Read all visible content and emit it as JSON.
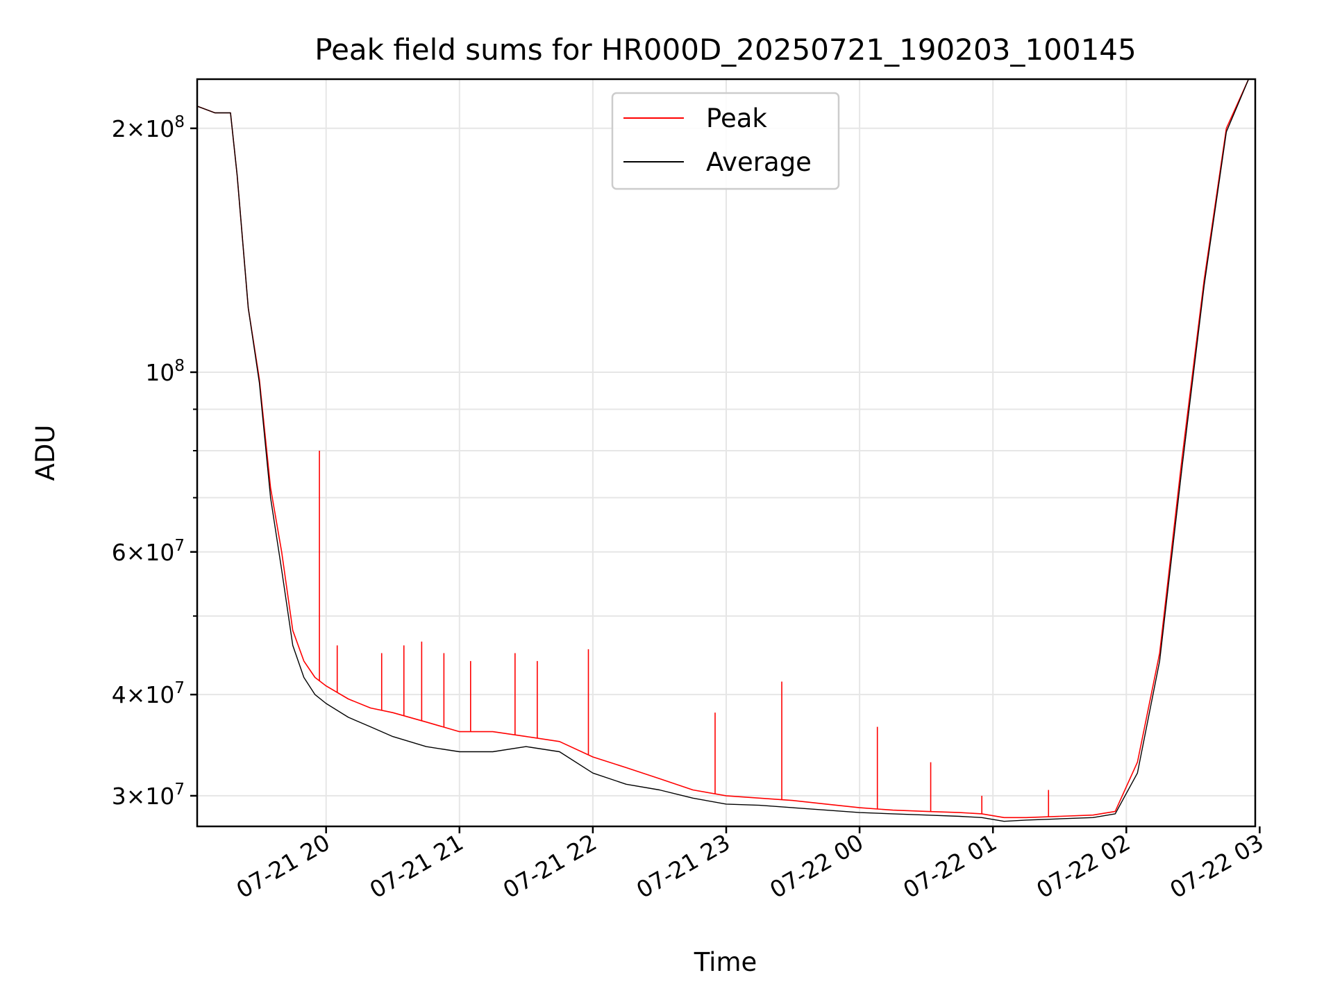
{
  "chart_data": {
    "type": "line",
    "title": "Peak field sums for HR000D_20250721_190203_100145",
    "xlabel": "Time",
    "ylabel": "ADU",
    "yscale": "log",
    "ylim": [
      27500000,
      230000000
    ],
    "xlim": [
      "2025-07-21 19:02",
      "2025-07-22 02:58"
    ],
    "grid": true,
    "legend_position": "upper-center",
    "x_ticks": [
      {
        "t": "2025-07-21 20:00",
        "label": "07-21 20"
      },
      {
        "t": "2025-07-21 21:00",
        "label": "07-21 21"
      },
      {
        "t": "2025-07-21 22:00",
        "label": "07-21 22"
      },
      {
        "t": "2025-07-21 23:00",
        "label": "07-21 23"
      },
      {
        "t": "2025-07-22 00:00",
        "label": "07-22 00"
      },
      {
        "t": "2025-07-22 01:00",
        "label": "07-22 01"
      },
      {
        "t": "2025-07-22 02:00",
        "label": "07-22 02"
      },
      {
        "t": "2025-07-22 03:00",
        "label": "07-22 03"
      }
    ],
    "y_ticks_major": [
      {
        "value": 30000000,
        "mantissa": "3",
        "exponent": "7"
      },
      {
        "value": 40000000,
        "mantissa": "4",
        "exponent": "7"
      },
      {
        "value": 60000000,
        "mantissa": "6",
        "exponent": "7"
      },
      {
        "value": 100000000,
        "mantissa": "",
        "exponent": "8"
      },
      {
        "value": 200000000,
        "mantissa": "2",
        "exponent": "8"
      }
    ],
    "y_ticks_minor": [
      50000000,
      70000000,
      80000000,
      90000000
    ],
    "series": [
      {
        "name": "Peak",
        "color": "#ff0000",
        "x": [
          "2025-07-21 19:02",
          "2025-07-21 19:10",
          "2025-07-21 19:17",
          "2025-07-21 19:20",
          "2025-07-21 19:25",
          "2025-07-21 19:30",
          "2025-07-21 19:35",
          "2025-07-21 19:40",
          "2025-07-21 19:45",
          "2025-07-21 19:50",
          "2025-07-21 19:55",
          "2025-07-21 20:00",
          "2025-07-21 20:10",
          "2025-07-21 20:20",
          "2025-07-21 20:30",
          "2025-07-21 20:45",
          "2025-07-21 21:00",
          "2025-07-21 21:15",
          "2025-07-21 21:30",
          "2025-07-21 21:45",
          "2025-07-21 22:00",
          "2025-07-21 22:15",
          "2025-07-21 22:30",
          "2025-07-21 22:45",
          "2025-07-21 23:00",
          "2025-07-21 23:15",
          "2025-07-21 23:30",
          "2025-07-21 23:45",
          "2025-07-22 00:00",
          "2025-07-22 00:15",
          "2025-07-22 00:30",
          "2025-07-22 00:45",
          "2025-07-22 00:55",
          "2025-07-22 01:05",
          "2025-07-22 01:15",
          "2025-07-22 01:30",
          "2025-07-22 01:45",
          "2025-07-22 01:55",
          "2025-07-22 02:05",
          "2025-07-22 02:15",
          "2025-07-22 02:25",
          "2025-07-22 02:35",
          "2025-07-22 02:45",
          "2025-07-22 02:55"
        ],
        "y": [
          213000000,
          209000000,
          209000000,
          175000000,
          120000000,
          98000000,
          72000000,
          60000000,
          48000000,
          44000000,
          42000000,
          41000000,
          39500000,
          38500000,
          38000000,
          37000000,
          36000000,
          36000000,
          35500000,
          35000000,
          33500000,
          32500000,
          31500000,
          30500000,
          30000000,
          29800000,
          29600000,
          29300000,
          29000000,
          28800000,
          28700000,
          28600000,
          28500000,
          28200000,
          28200000,
          28300000,
          28400000,
          28700000,
          33000000,
          45000000,
          78000000,
          130000000,
          200000000,
          230000000
        ],
        "spikes": [
          {
            "x": "2025-07-21 19:57",
            "y": 80000000
          },
          {
            "x": "2025-07-21 20:05",
            "y": 46000000
          },
          {
            "x": "2025-07-21 20:25",
            "y": 45000000
          },
          {
            "x": "2025-07-21 20:35",
            "y": 46000000
          },
          {
            "x": "2025-07-21 20:43",
            "y": 46500000
          },
          {
            "x": "2025-07-21 20:53",
            "y": 45000000
          },
          {
            "x": "2025-07-21 21:05",
            "y": 44000000
          },
          {
            "x": "2025-07-21 21:25",
            "y": 45000000
          },
          {
            "x": "2025-07-21 21:35",
            "y": 44000000
          },
          {
            "x": "2025-07-21 21:58",
            "y": 45500000
          },
          {
            "x": "2025-07-21 22:55",
            "y": 38000000
          },
          {
            "x": "2025-07-21 23:25",
            "y": 41500000
          },
          {
            "x": "2025-07-22 00:08",
            "y": 36500000
          },
          {
            "x": "2025-07-22 00:32",
            "y": 33000000
          },
          {
            "x": "2025-07-22 00:55",
            "y": 30000000
          },
          {
            "x": "2025-07-22 01:25",
            "y": 30500000
          }
        ]
      },
      {
        "name": "Average",
        "color": "#000000",
        "x": [
          "2025-07-21 19:02",
          "2025-07-21 19:10",
          "2025-07-21 19:17",
          "2025-07-21 19:20",
          "2025-07-21 19:25",
          "2025-07-21 19:30",
          "2025-07-21 19:35",
          "2025-07-21 19:40",
          "2025-07-21 19:45",
          "2025-07-21 19:50",
          "2025-07-21 19:55",
          "2025-07-21 20:00",
          "2025-07-21 20:10",
          "2025-07-21 20:20",
          "2025-07-21 20:30",
          "2025-07-21 20:45",
          "2025-07-21 21:00",
          "2025-07-21 21:15",
          "2025-07-21 21:30",
          "2025-07-21 21:45",
          "2025-07-21 22:00",
          "2025-07-21 22:15",
          "2025-07-21 22:30",
          "2025-07-21 22:45",
          "2025-07-21 23:00",
          "2025-07-21 23:15",
          "2025-07-21 23:30",
          "2025-07-21 23:45",
          "2025-07-22 00:00",
          "2025-07-22 00:15",
          "2025-07-22 00:30",
          "2025-07-22 00:45",
          "2025-07-22 00:55",
          "2025-07-22 01:05",
          "2025-07-22 01:15",
          "2025-07-22 01:30",
          "2025-07-22 01:45",
          "2025-07-22 01:55",
          "2025-07-22 02:05",
          "2025-07-22 02:15",
          "2025-07-22 02:25",
          "2025-07-22 02:35",
          "2025-07-22 02:45",
          "2025-07-22 02:55"
        ],
        "y": [
          213000000,
          209000000,
          209000000,
          175000000,
          120000000,
          97000000,
          70000000,
          57000000,
          46000000,
          42000000,
          40000000,
          39000000,
          37500000,
          36500000,
          35500000,
          34500000,
          34000000,
          34000000,
          34500000,
          34000000,
          32000000,
          31000000,
          30500000,
          29800000,
          29300000,
          29200000,
          29000000,
          28800000,
          28600000,
          28500000,
          28400000,
          28300000,
          28200000,
          27900000,
          28000000,
          28100000,
          28200000,
          28500000,
          32000000,
          44000000,
          76000000,
          128000000,
          198000000,
          230000000
        ]
      }
    ]
  }
}
